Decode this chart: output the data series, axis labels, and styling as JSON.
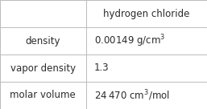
{
  "title": "hydrogen chloride",
  "rows": [
    {
      "label": "density",
      "value": "0.00149 g/cm$^{3}$"
    },
    {
      "label": "vapor density",
      "value": "1.3"
    },
    {
      "label": "molar volume",
      "value": "24 470 cm$^{3}$/mol"
    }
  ],
  "col_split": 0.415,
  "background": "#ffffff",
  "border_color": "#bbbbbb",
  "text_color": "#2b2b2b",
  "fontsize": 8.5
}
